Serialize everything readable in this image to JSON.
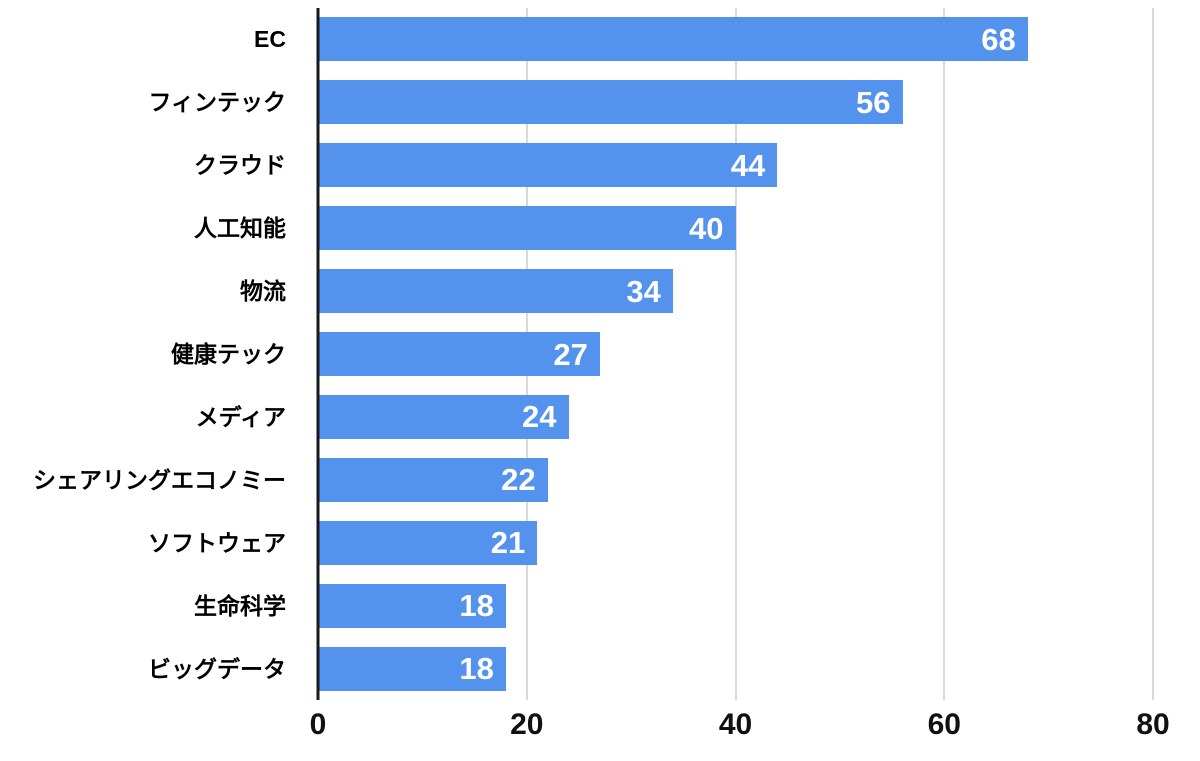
{
  "chart_data": {
    "type": "bar",
    "orientation": "horizontal",
    "title": "",
    "xlabel": "",
    "ylabel": "",
    "categories": [
      "EC",
      "フィンテック",
      "クラウド",
      "人工知能",
      "物流",
      "健康テック",
      "メディア",
      "シェアリングエコノミー",
      "ソフトウェア",
      "生命科学",
      "ビッグデータ"
    ],
    "values": [
      68,
      56,
      44,
      40,
      34,
      27,
      24,
      22,
      21,
      18,
      18
    ],
    "xlim": [
      0,
      80
    ],
    "x_ticks": [
      0,
      20,
      40,
      60,
      80
    ],
    "x_tick_labels": [
      "0",
      "20",
      "40",
      "60",
      "80"
    ],
    "grid": true,
    "legend": false,
    "value_labels": "inside-end",
    "colors": {
      "bar": "#5493ed",
      "value_label": "#ffffff",
      "gridline": "#d9d9d9",
      "axis_line": "#1a1a1a",
      "label_text": "#000000",
      "tick_text": "#111111",
      "background": "#ffffff"
    }
  }
}
